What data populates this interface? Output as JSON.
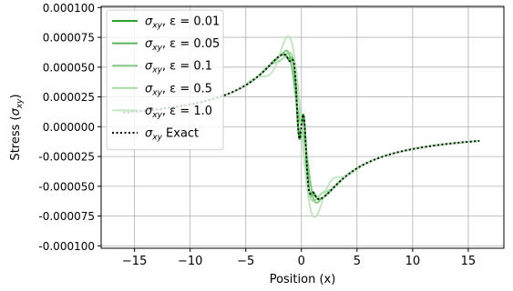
{
  "chart_data": {
    "type": "line",
    "title": "",
    "xlabel": "Position (x)",
    "ylabel": "Stress (σxy)",
    "ylabel_parts": {
      "base": "Stress (",
      "sym": "σ",
      "sub": "xy",
      "end": ")"
    },
    "xlim": [
      -18,
      18.2
    ],
    "ylim": [
      -0.000102,
      0.000101
    ],
    "x_ticks": [
      -15,
      -10,
      -5,
      0,
      5,
      10,
      15
    ],
    "x_tick_labels": [
      "−15",
      "−10",
      "−5",
      "0",
      "5",
      "10",
      "15"
    ],
    "y_ticks": [
      0.0001,
      7.5e-05,
      5e-05,
      2.5e-05,
      0,
      -2.5e-05,
      -5e-05,
      -7.5e-05,
      -0.0001
    ],
    "y_tick_labels": [
      "0.000100",
      "0.000075",
      "0.000050",
      "0.000025",
      "0.000000",
      "-0.000025",
      "-0.000050",
      "-0.000075",
      "-0.000100"
    ],
    "grid": true,
    "legend_position": "upper-left",
    "model": {
      "amplitude": 4.8e-05,
      "x_range": [
        -16,
        16
      ]
    },
    "series": [
      {
        "name_label": "σxy, ε = 0.01",
        "sym": "σ",
        "sub": "xy",
        "tail": ", ε = 0.01",
        "color": "#2ca02c",
        "opacity": 1.0,
        "dashed": false,
        "bump": {
          "a": 2.8e-05,
          "w": 0.5
        }
      },
      {
        "name_label": "σxy, ε = 0.05",
        "sym": "σ",
        "sub": "xy",
        "tail": ", ε = 0.05",
        "color": "#4aae4a",
        "opacity": 0.9,
        "dashed": false,
        "bump": {
          "a": 2.5e-05,
          "w": 0.55
        }
      },
      {
        "name_label": "σxy, ε = 0.1",
        "sym": "σ",
        "sub": "xy",
        "tail": ", ε = 0.1",
        "color": "#6fc06f",
        "opacity": 0.85,
        "dashed": false,
        "bump": {
          "a": 1.2e-05,
          "w": 0.9
        }
      },
      {
        "name_label": "σxy, ε = 0.5",
        "sym": "σ",
        "sub": "xy",
        "tail": ", ε = 0.5",
        "color": "#98d498",
        "opacity": 0.85,
        "dashed": false,
        "bump": {
          "a": -1.2e-05,
          "w": 1.4
        }
      },
      {
        "name_label": "σxy, ε = 1.0",
        "sym": "σ",
        "sub": "xy",
        "tail": ", ε = 1.0",
        "color": "#bfe3bf",
        "opacity": 0.9,
        "dashed": false,
        "bump": {
          "a": -2.2e-05,
          "w": 2.0
        }
      },
      {
        "name_label": "σxy Exact",
        "sym": "σ",
        "sub": "xy",
        "tail": " Exact",
        "color": "#000000",
        "opacity": 1.0,
        "dashed": true,
        "bump": {
          "a": 2.8e-05,
          "w": 0.5
        }
      }
    ]
  }
}
